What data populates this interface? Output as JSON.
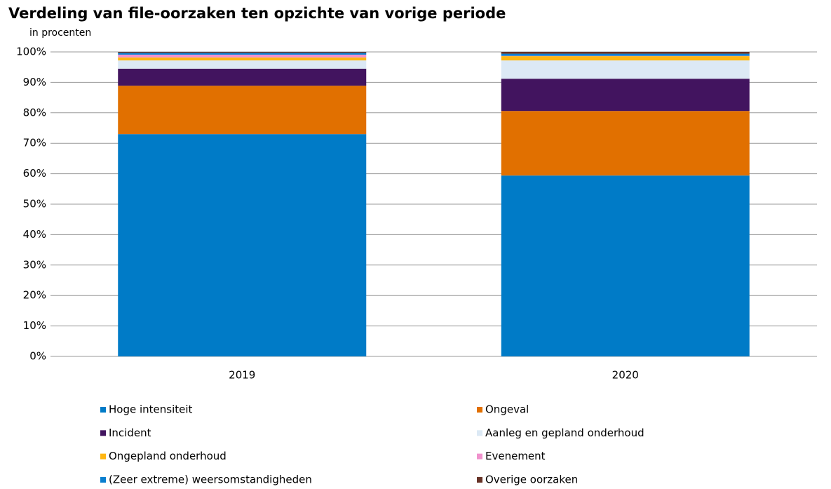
{
  "chart_data": {
    "type": "stacked_bar",
    "title": "Verdeling van file-oorzaken ten opzichte van vorige periode",
    "subtitle": "in procenten",
    "categories": [
      "2019",
      "2020"
    ],
    "series": [
      {
        "name": "Hoge intensiteit",
        "color": "#007bc7",
        "values": [
          73.0,
          59.4
        ]
      },
      {
        "name": "Ongeval",
        "color": "#e17000",
        "values": [
          15.9,
          21.2
        ]
      },
      {
        "name": "Incident",
        "color": "#42145f",
        "values": [
          5.6,
          10.6
        ]
      },
      {
        "name": "Aanleg en gepland onderhoud",
        "color": "#dce9f5",
        "values": [
          2.7,
          6.0
        ]
      },
      {
        "name": "Ongepland onderhoud",
        "color": "#ffb612",
        "values": [
          1.0,
          1.4
        ]
      },
      {
        "name": "Evenement",
        "color": "#f092cd",
        "values": [
          0.9,
          0.1
        ]
      },
      {
        "name": "(Zeer extreme) weersomstandigheden",
        "color": "#0a7fcf",
        "values": [
          0.6,
          0.7
        ]
      },
      {
        "name": "Overige oorzaken",
        "color": "#673327",
        "values": [
          0.3,
          0.6
        ]
      }
    ],
    "ylim": [
      0,
      100
    ],
    "yticks": [
      {
        "value": 0,
        "label": "0%"
      },
      {
        "value": 10,
        "label": "10%"
      },
      {
        "value": 20,
        "label": "20%"
      },
      {
        "value": 30,
        "label": "30%"
      },
      {
        "value": 40,
        "label": "40%"
      },
      {
        "value": 50,
        "label": "50%"
      },
      {
        "value": 60,
        "label": "60%"
      },
      {
        "value": 70,
        "label": "70%"
      },
      {
        "value": 80,
        "label": "80%"
      },
      {
        "value": 90,
        "label": "90%"
      },
      {
        "value": 100,
        "label": "100%"
      }
    ],
    "grid": true
  }
}
